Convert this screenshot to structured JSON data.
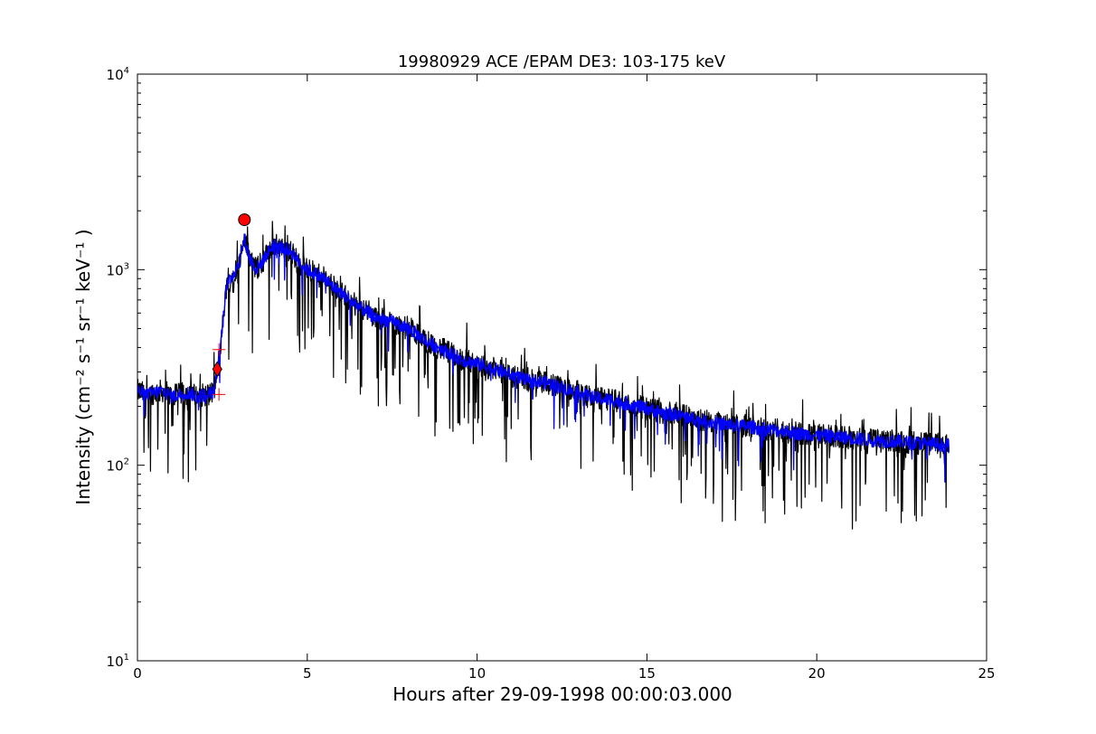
{
  "chart_data": {
    "type": "line",
    "title": "19980929 ACE /EPAM DE3: 103-175 keV",
    "xlabel": "Hours after 29-09-1998 00:00:03.000",
    "ylabel": "Intensity (cm⁻² s⁻¹ sr⁻¹ keV⁻¹ )",
    "xlim": [
      0,
      25
    ],
    "ylim": [
      10,
      10000
    ],
    "yscale": "log",
    "grid": false,
    "x_ticks": [
      {
        "value": 0,
        "label": "0"
      },
      {
        "value": 5,
        "label": "5"
      },
      {
        "value": 10,
        "label": "10"
      },
      {
        "value": 15,
        "label": "15"
      },
      {
        "value": 20,
        "label": "20"
      },
      {
        "value": 25,
        "label": "25"
      }
    ],
    "y_ticks": [
      {
        "value": 10,
        "base": "10",
        "exp": "1"
      },
      {
        "value": 100,
        "base": "10",
        "exp": "2"
      },
      {
        "value": 1000,
        "base": "10",
        "exp": "3"
      },
      {
        "value": 10000,
        "base": "10",
        "exp": "4"
      }
    ],
    "series": [
      {
        "color": "#000000",
        "style": "raw, noisy with downward spikes",
        "x": [
          0.0,
          0.25,
          0.5,
          0.75,
          1.0,
          1.25,
          1.5,
          1.75,
          2.0,
          2.25,
          2.35,
          2.5,
          2.6,
          2.75,
          3.0,
          3.15,
          3.3,
          3.5,
          3.75,
          4.0,
          4.25,
          4.5,
          4.75,
          5.0,
          5.25,
          5.5,
          5.75,
          6.0,
          6.5,
          7.0,
          7.5,
          8.0,
          8.5,
          9.0,
          9.5,
          10.0,
          10.5,
          11.0,
          11.5,
          12.0,
          12.5,
          13.0,
          13.5,
          14.0,
          14.5,
          15.0,
          15.5,
          16.0,
          16.5,
          17.0,
          17.5,
          18.0,
          18.5,
          19.0,
          19.5,
          20.0,
          20.5,
          21.0,
          21.5,
          22.0,
          22.5,
          23.0,
          23.5,
          23.9
        ],
        "y": [
          240,
          230,
          235,
          240,
          225,
          230,
          235,
          225,
          230,
          235,
          300,
          500,
          800,
          900,
          1100,
          1450,
          1150,
          1000,
          1150,
          1350,
          1300,
          1250,
          1100,
          1000,
          950,
          900,
          820,
          760,
          650,
          570,
          540,
          500,
          430,
          390,
          350,
          330,
          310,
          290,
          270,
          265,
          250,
          235,
          220,
          215,
          205,
          195,
          185,
          180,
          170,
          165,
          160,
          158,
          152,
          150,
          145,
          142,
          140,
          138,
          135,
          133,
          132,
          130,
          128,
          126
        ],
        "spike_fraction": 0.45,
        "noise_dex": 0.06
      },
      {
        "color": "#0000ff",
        "style": "smoothed",
        "x": [
          0.0,
          0.25,
          0.5,
          0.75,
          1.0,
          1.25,
          1.5,
          1.75,
          2.0,
          2.25,
          2.35,
          2.5,
          2.6,
          2.75,
          3.0,
          3.15,
          3.3,
          3.5,
          3.75,
          4.0,
          4.25,
          4.5,
          4.75,
          5.0,
          5.25,
          5.5,
          5.75,
          6.0,
          6.5,
          7.0,
          7.5,
          8.0,
          8.5,
          9.0,
          9.5,
          10.0,
          10.5,
          11.0,
          11.5,
          12.0,
          12.5,
          13.0,
          13.5,
          14.0,
          14.5,
          15.0,
          15.5,
          16.0,
          16.5,
          17.0,
          17.5,
          18.0,
          18.5,
          19.0,
          19.5,
          20.0,
          20.5,
          21.0,
          21.5,
          22.0,
          22.5,
          23.0,
          23.5,
          23.9
        ],
        "y": [
          240,
          230,
          235,
          240,
          225,
          230,
          235,
          225,
          230,
          235,
          300,
          500,
          800,
          900,
          1100,
          1450,
          1150,
          1000,
          1150,
          1350,
          1300,
          1250,
          1100,
          1000,
          950,
          900,
          820,
          760,
          650,
          570,
          540,
          500,
          430,
          390,
          350,
          330,
          310,
          290,
          270,
          265,
          250,
          235,
          220,
          215,
          205,
          195,
          185,
          180,
          170,
          165,
          160,
          158,
          152,
          150,
          145,
          142,
          140,
          138,
          135,
          133,
          132,
          130,
          128,
          126
        ],
        "spike_fraction": 0.12,
        "noise_dex": 0.035
      }
    ],
    "markers": [
      {
        "kind": "circle",
        "color": "#ff0000",
        "x": 3.15,
        "y": 1800
      },
      {
        "kind": "diamond",
        "color": "#ff0000",
        "x": 2.35,
        "y": 310
      },
      {
        "kind": "plus",
        "color": "#ff0000",
        "x": 2.4,
        "y": 390
      },
      {
        "kind": "plus",
        "color": "#ff0000",
        "x": 2.4,
        "y": 230
      }
    ]
  }
}
